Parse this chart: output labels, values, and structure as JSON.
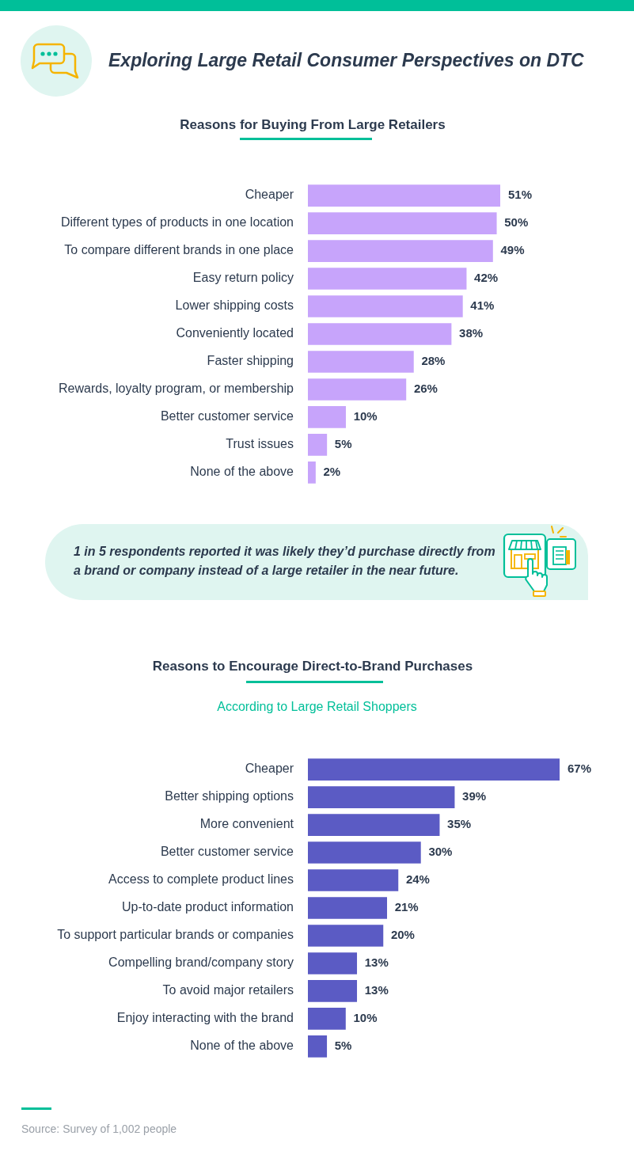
{
  "chart_data": [
    {
      "type": "bar",
      "orientation": "horizontal",
      "title": "Reasons for Buying From Large Retailers",
      "annotations": [
        "Exploring Large Retail Consumer Perspectives on DTC",
        "1 in 5 respondents reported it was likely they’d purchase directly from a brand or company instead of a large retailer in the near future."
      ],
      "categories": [
        "Cheaper",
        "Different types of products in one location",
        "To compare different brands in one place",
        "Easy return policy",
        "Lower shipping costs",
        "Conveniently located",
        "Faster shipping",
        "Rewards, loyalty program, or membership",
        "Better customer service",
        "Trust issues",
        "None of the above"
      ],
      "values": [
        51,
        50,
        49,
        42,
        41,
        38,
        28,
        26,
        10,
        5,
        2
      ],
      "value_labels": [
        "51%",
        "50%",
        "49%",
        "42%",
        "41%",
        "38%",
        "28%",
        "26%",
        "10%",
        "5%",
        "2%"
      ],
      "color": "#c7a4fb",
      "tick_labels": "y"
    },
    {
      "type": "bar",
      "orientation": "horizontal",
      "title": "Reasons to Encourage Direct-to-Brand Purchases",
      "subtitle": "According to Large Retail Shoppers",
      "annotations": [
        "Source: Survey of 1,002 people"
      ],
      "categories": [
        "Cheaper",
        "Better shipping options",
        "More convenient",
        "Better customer service",
        "Access to complete product lines",
        "Up-to-date product information",
        "To support particular brands or companies",
        "Compelling brand/company story",
        "To avoid major retailers",
        "Enjoy interacting with the brand",
        "None of the above"
      ],
      "values": [
        67,
        39,
        35,
        30,
        24,
        21,
        20,
        13,
        13,
        10,
        5
      ],
      "value_labels": [
        "67%",
        "39%",
        "35%",
        "30%",
        "24%",
        "21%",
        "20%",
        "13%",
        "13%",
        "10%",
        "5%"
      ],
      "color": "#5b5bc4",
      "tick_labels": "y"
    }
  ]
}
